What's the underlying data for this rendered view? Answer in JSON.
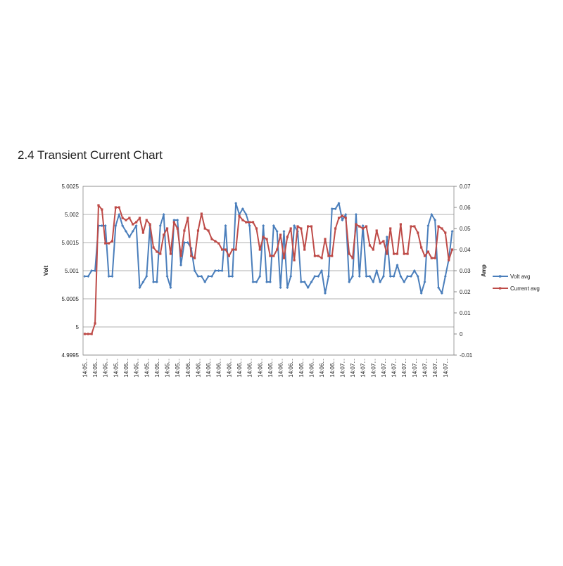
{
  "chart_data": {
    "type": "line",
    "title": "2.4 Transient Current Chart",
    "y_label": "Volt",
    "y2_label": "Amp",
    "ylim": [
      4.9995,
      5.0025
    ],
    "yticks": [
      4.9995,
      5,
      5.0005,
      5.001,
      5.0015,
      5.002,
      5.0025
    ],
    "y2lim": [
      -0.01,
      0.07
    ],
    "y2ticks": [
      -0.01,
      0,
      0.01,
      0.02,
      0.03,
      0.04,
      0.05,
      0.06,
      0.07
    ],
    "grid": true,
    "legend": "right",
    "categories": [
      "14:05...",
      null,
      null,
      "14:05...",
      null,
      null,
      "14:05...",
      null,
      null,
      "14:05...",
      null,
      null,
      "14:05...",
      null,
      null,
      "14:05...",
      null,
      null,
      "14:05...",
      null,
      null,
      "14:05...",
      null,
      null,
      "14:05...",
      null,
      null,
      "14:05...",
      null,
      null,
      "14:06...",
      null,
      null,
      "14:06...",
      null,
      null,
      "14:06...",
      null,
      null,
      "14:06...",
      null,
      null,
      "14:06...",
      null,
      null,
      "14:06...",
      null,
      null,
      "14:06...",
      null,
      null,
      "14:06...",
      null,
      null,
      "14:06...",
      null,
      null,
      "14:06...",
      null,
      null,
      "14:06...",
      null,
      null,
      "14:06...",
      null,
      null,
      "14:06...",
      null,
      null,
      "14:06...",
      null,
      null,
      "14:06...",
      null,
      null,
      "14:07...",
      null,
      null,
      "14:07...",
      null,
      null,
      "14:07...",
      null,
      null,
      "14:07...",
      null,
      null,
      "14:07...",
      null,
      null,
      "14:07...",
      null,
      null,
      "14:07...",
      null,
      null,
      "14:07...",
      null,
      null,
      "14:07...",
      null,
      null,
      "14:07...",
      null,
      null,
      "14:07...",
      null,
      null
    ],
    "series": [
      {
        "name": "Volt avg",
        "color": "#4a7ebb",
        "marker": "diamond",
        "values": [
          5.0009,
          5.0009,
          5.001,
          5.001,
          5.0018,
          5.0018,
          5.0018,
          5.0009,
          5.0009,
          5.0018,
          5.002,
          5.0018,
          5.0017,
          5.0016,
          5.0017,
          5.0018,
          5.0007,
          5.0008,
          5.0009,
          5.0018,
          5.0008,
          5.0008,
          5.0018,
          5.002,
          5.0009,
          5.0007,
          5.0019,
          5.0019,
          5.0011,
          5.0015,
          5.0015,
          5.0014,
          5.001,
          5.0009,
          5.0009,
          5.0008,
          5.0009,
          5.0009,
          5.001,
          5.001,
          5.001,
          5.0018,
          5.0009,
          5.0009,
          5.0022,
          5.002,
          5.0021,
          5.002,
          5.0018,
          5.0008,
          5.0008,
          5.0009,
          5.0018,
          5.0008,
          5.0008,
          5.0018,
          5.0017,
          5.0007,
          5.0017,
          5.0007,
          5.0009,
          5.0018,
          5.0017,
          5.0008,
          5.0008,
          5.0007,
          5.0008,
          5.0009,
          5.0009,
          5.001,
          5.0006,
          5.0009,
          5.0021,
          5.0021,
          5.0022,
          5.0019,
          5.002,
          5.0008,
          5.0009,
          5.002,
          5.0009,
          5.0018,
          5.0009,
          5.0009,
          5.0008,
          5.001,
          5.0008,
          5.0009,
          5.0016,
          5.0009,
          5.0009,
          5.0011,
          5.0009,
          5.0008,
          5.0009,
          5.0009,
          5.001,
          5.0009,
          5.0006,
          5.0008,
          5.0018,
          5.002,
          5.0019,
          5.0007,
          5.0006,
          5.0009,
          5.0012,
          5.0017
        ]
      },
      {
        "name": "Current avg",
        "color": "#be4b48",
        "marker": "square",
        "axis": "y2",
        "values": [
          0,
          0,
          0,
          0.005,
          0.061,
          0.059,
          0.043,
          0.043,
          0.044,
          0.06,
          0.06,
          0.055,
          0.054,
          0.055,
          0.052,
          0.053,
          0.055,
          0.048,
          0.054,
          0.052,
          0.041,
          0.039,
          0.038,
          0.047,
          0.05,
          0.038,
          0.053,
          0.05,
          0.037,
          0.049,
          0.055,
          0.037,
          0.036,
          0.049,
          0.057,
          0.05,
          0.049,
          0.045,
          0.044,
          0.043,
          0.04,
          0.04,
          0.037,
          0.04,
          0.04,
          0.056,
          0.054,
          0.053,
          0.053,
          0.053,
          0.05,
          0.04,
          0.046,
          0.045,
          0.037,
          0.037,
          0.04,
          0.047,
          0.036,
          0.046,
          0.05,
          0.035,
          0.051,
          0.05,
          0.04,
          0.051,
          0.051,
          0.037,
          0.037,
          0.036,
          0.045,
          0.037,
          0.037,
          0.05,
          0.055,
          0.056,
          0.055,
          0.038,
          0.036,
          0.052,
          0.051,
          0.05,
          0.051,
          0.042,
          0.04,
          0.049,
          0.043,
          0.044,
          0.038,
          0.05,
          0.038,
          0.038,
          0.052,
          0.038,
          0.038,
          0.051,
          0.051,
          0.048,
          0.041,
          0.037,
          0.039,
          0.036,
          0.036,
          0.051,
          0.05,
          0.048,
          0.035,
          0.04
        ]
      }
    ]
  }
}
